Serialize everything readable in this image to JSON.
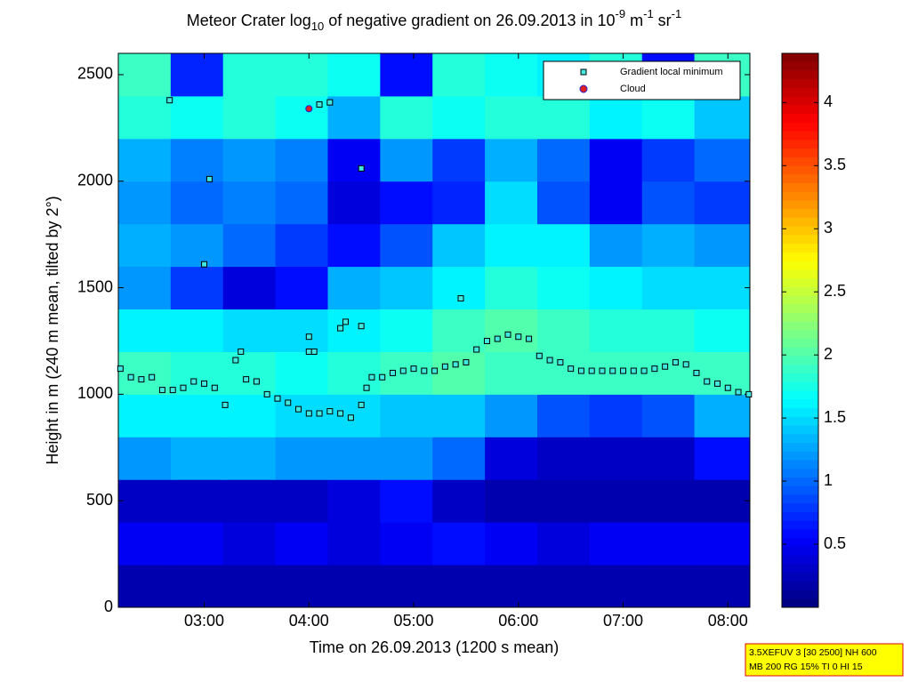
{
  "chart_data": {
    "type": "heatmap",
    "title": [
      "Meteor Crater log",
      "10",
      " of negative gradient on 26.09.2013 in 10",
      "-9",
      " m",
      "-1",
      " sr",
      "-1"
    ],
    "x_label": "Time on 26.09.2013 (1200 s mean)",
    "y_label": "Height in m (240 m mean, tilted by 2°)",
    "xlim": [
      2.18,
      8.21
    ],
    "ylim": [
      0,
      2600
    ],
    "xticks": [
      {
        "value": 3,
        "label": "03:00"
      },
      {
        "value": 4,
        "label": "04:00"
      },
      {
        "value": 5,
        "label": "05:00"
      },
      {
        "value": 6,
        "label": "06:00"
      },
      {
        "value": 7,
        "label": "07:00"
      },
      {
        "value": 8,
        "label": "08:00"
      }
    ],
    "yticks": [
      0,
      500,
      1000,
      1500,
      2000,
      2500
    ],
    "clim": [
      0,
      4.39
    ],
    "cticks": [
      0.5,
      1,
      1.5,
      2,
      2.5,
      3,
      3.5,
      4
    ],
    "x_bins": [
      2.18,
      2.68,
      3.18,
      3.68,
      4.18,
      4.68,
      5.18,
      5.68,
      6.18,
      6.68,
      7.18,
      7.68,
      8.21
    ],
    "y_bins": [
      0,
      200,
      400,
      600,
      800,
      1000,
      1200,
      1400,
      1600,
      1800,
      2000,
      2200,
      2400,
      2600
    ],
    "z": [
      [
        0.2,
        0.2,
        0.2,
        0.2,
        0.2,
        0.2,
        0.2,
        0.2,
        0.2,
        0.2,
        0.2,
        0.2
      ],
      [
        0.5,
        0.5,
        0.4,
        0.5,
        0.4,
        0.5,
        0.6,
        0.5,
        0.4,
        0.5,
        0.5,
        0.5
      ],
      [
        0.3,
        0.3,
        0.3,
        0.3,
        0.4,
        0.6,
        0.3,
        0.2,
        0.2,
        0.2,
        0.2,
        0.2
      ],
      [
        1.2,
        1.3,
        1.3,
        1.2,
        1.2,
        1.2,
        1.0,
        0.4,
        0.3,
        0.3,
        0.3,
        0.6
      ],
      [
        1.6,
        1.6,
        1.6,
        1.5,
        1.5,
        1.4,
        1.4,
        1.2,
        0.9,
        0.8,
        0.9,
        1.3
      ],
      [
        1.9,
        1.8,
        1.8,
        1.7,
        1.8,
        1.9,
        2.0,
        1.9,
        1.9,
        1.9,
        1.9,
        1.9
      ],
      [
        1.6,
        1.6,
        1.5,
        1.5,
        1.6,
        1.7,
        1.9,
        2.0,
        1.9,
        1.8,
        1.8,
        1.7
      ],
      [
        1.2,
        0.8,
        0.4,
        0.6,
        1.3,
        1.4,
        1.6,
        1.8,
        1.7,
        1.6,
        1.5,
        1.5
      ],
      [
        1.3,
        1.2,
        1.0,
        0.8,
        0.6,
        0.9,
        1.4,
        1.6,
        1.6,
        1.2,
        1.3,
        1.2
      ],
      [
        1.2,
        1.0,
        1.1,
        1.0,
        0.4,
        0.6,
        0.7,
        1.5,
        0.9,
        0.5,
        0.9,
        0.8
      ],
      [
        1.3,
        1.1,
        1.2,
        1.1,
        0.5,
        1.2,
        0.8,
        1.3,
        1.0,
        0.5,
        0.8,
        1.0
      ],
      [
        1.8,
        1.7,
        1.8,
        1.7,
        1.3,
        1.8,
        1.7,
        1.8,
        1.8,
        1.6,
        1.7,
        1.4
      ],
      [
        1.9,
        0.7,
        1.8,
        1.8,
        1.7,
        0.6,
        1.8,
        1.7,
        1.6,
        1.8,
        0.6,
        1.9
      ]
    ],
    "series": [
      {
        "name": "Gradient local minimum",
        "color": "#40e8e0",
        "marker": "square",
        "x": [
          2.2,
          2.3,
          2.4,
          2.5,
          2.6,
          2.7,
          2.8,
          2.9,
          3.0,
          3.1,
          3.2,
          3.3,
          3.35,
          3.4,
          3.5,
          3.6,
          3.7,
          3.8,
          3.9,
          4.0,
          4.1,
          4.2,
          4.3,
          4.4,
          4.5,
          4.55,
          4.6,
          4.7,
          4.8,
          4.9,
          5.0,
          5.1,
          5.2,
          5.3,
          5.4,
          5.5,
          5.6,
          5.7,
          5.8,
          5.9,
          6.0,
          6.1,
          6.2,
          6.3,
          6.4,
          6.5,
          6.6,
          6.7,
          6.8,
          6.9,
          7.0,
          7.1,
          7.2,
          7.3,
          7.4,
          7.5,
          7.6,
          7.7,
          7.8,
          7.9,
          8.0,
          8.1,
          8.2,
          2.67,
          3.05,
          3.0,
          4.0,
          4.0,
          4.05,
          4.3,
          4.35,
          4.5,
          4.5,
          5.45,
          4.1,
          4.2
        ],
        "values": [
          1120,
          1080,
          1070,
          1080,
          1020,
          1020,
          1030,
          1060,
          1050,
          1030,
          950,
          1160,
          1200,
          1070,
          1060,
          1000,
          980,
          960,
          930,
          910,
          910,
          920,
          910,
          890,
          950,
          1030,
          1080,
          1080,
          1100,
          1110,
          1120,
          1110,
          1110,
          1130,
          1140,
          1150,
          1210,
          1250,
          1260,
          1280,
          1270,
          1260,
          1180,
          1160,
          1150,
          1120,
          1110,
          1110,
          1110,
          1110,
          1110,
          1110,
          1110,
          1120,
          1130,
          1150,
          1140,
          1100,
          1060,
          1050,
          1030,
          1010,
          1000,
          2380,
          2010,
          1610,
          1270,
          1200,
          1200,
          1310,
          1340,
          1320,
          2060,
          1450,
          2360,
          2370
        ]
      },
      {
        "name": "Cloud",
        "color": "#e02020",
        "edge": "#2020d0",
        "marker": "circle",
        "x": [
          4.0
        ],
        "values": [
          2340
        ]
      }
    ],
    "legend": "upper right",
    "info": [
      "3.5XEFUV 3 [30 2500] NH 600",
      "MB 200 RG 15% TI 0 HI 15"
    ]
  }
}
